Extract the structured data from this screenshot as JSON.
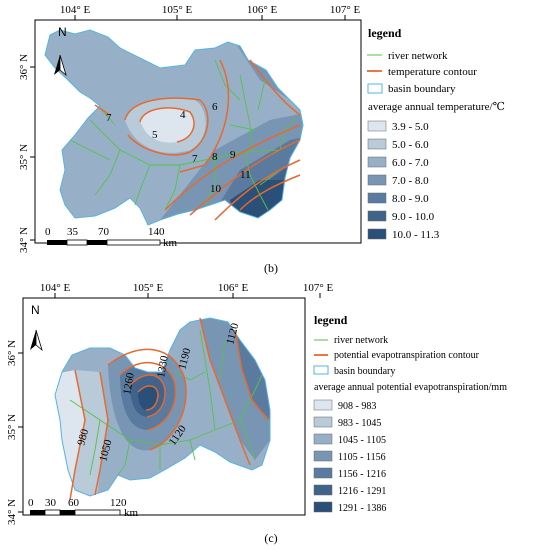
{
  "panel_b": {
    "caption": "(b)",
    "lon_ticks": [
      "104° E",
      "105° E",
      "106° E",
      "107° E"
    ],
    "lat_ticks": [
      "36° N",
      "35° N",
      "34° N"
    ],
    "north": "N",
    "scale_labels": [
      "0",
      "35",
      "70",
      "140"
    ],
    "scale_unit": "km",
    "legend": {
      "title": "legend",
      "items": [
        "river network",
        "temperature contour",
        "basin boundary"
      ],
      "class_title": "average annual temperature/℃",
      "classes": [
        "3.9 - 5.0",
        "5.0 - 6.0",
        "6.0 - 7.0",
        "7.0 - 8.0",
        "8.0 - 9.0",
        "9.0 - 10.0",
        "10.0 - 11.3"
      ]
    },
    "contour_labels": [
      "4",
      "5",
      "6",
      "7",
      "7",
      "8",
      "9",
      "10",
      "11"
    ]
  },
  "panel_c": {
    "caption": "(c)",
    "lon_ticks": [
      "104° E",
      "105° E",
      "106° E",
      "107° E"
    ],
    "lat_ticks": [
      "36° N",
      "35° N",
      "34° N"
    ],
    "north": "N",
    "scale_labels": [
      "0",
      "30",
      "60",
      "120"
    ],
    "scale_unit": "km",
    "legend": {
      "title": "legend",
      "items": [
        "river network",
        "potential evapotranspiration contour",
        "basin boundary"
      ],
      "class_title": "average annual potential evapotranspiration/mm",
      "classes": [
        "908 - 983",
        "983 - 1045",
        "1045 - 1105",
        "1105 - 1156",
        "1156 - 1216",
        "1216 - 1291",
        "1291 - 1386"
      ]
    },
    "contour_labels": [
      "980",
      "1050",
      "1120",
      "1190",
      "1260",
      "1330",
      "1120"
    ]
  },
  "colors": {
    "classes": [
      "#dde6ef",
      "#b9cad9",
      "#98b0c7",
      "#7895b3",
      "#5a7b9f",
      "#3f638a",
      "#2a4f78"
    ],
    "river": "#55c24a",
    "contour": "#e56a2f",
    "boundary": "#56b4e0"
  }
}
